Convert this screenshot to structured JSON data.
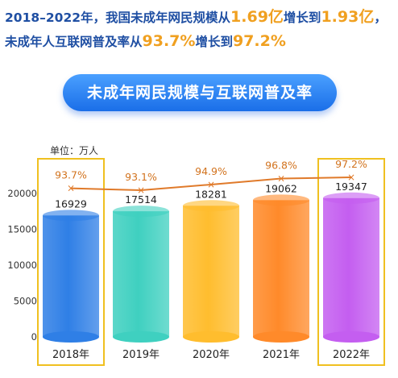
{
  "headline": {
    "line1_part1": "2018–2022年，我国未成年网民规模从",
    "line1_value1": "1.69亿",
    "line1_part2": "增长到",
    "line1_value2": "1.93亿",
    "line1_end": "，",
    "line2_part1": "未成年人互联网普及率从",
    "line2_value1": "93.7%",
    "line2_part2": "增长到",
    "line2_value2": "97.2%"
  },
  "chart_data": {
    "type": "bar",
    "title": "未成年网民规模与互联网普及率",
    "unit_label": "单位：万人",
    "categories": [
      "2018年",
      "2019年",
      "2020年",
      "2021年",
      "2022年"
    ],
    "y_ticks": [
      0,
      5000,
      10000,
      15000,
      20000
    ],
    "ylim": [
      0,
      22000
    ],
    "series": [
      {
        "values": [
          16929,
          17514,
          18281,
          19062,
          19347
        ],
        "value_labels": [
          "16929",
          "17514",
          "18281",
          "19062",
          "19347"
        ]
      },
      {
        "values": [
          93.7,
          93.1,
          94.9,
          96.8,
          97.2
        ],
        "value_labels": [
          "93.7%",
          "93.1%",
          "94.9%",
          "96.8%",
          "97.2%"
        ]
      }
    ],
    "highlighted_categories": [
      "2018年",
      "2022年"
    ],
    "colors": {
      "bars": [
        "#2f7fe6",
        "#3fd0c0",
        "#ffbd2e",
        "#ff8a2a",
        "#c45ef0"
      ],
      "line": "#e07a2a",
      "highlight_box": "#f0c020",
      "headline": "#1f4fa3",
      "headline_accent": "#f0a020"
    },
    "grid": false,
    "legend": "none"
  }
}
